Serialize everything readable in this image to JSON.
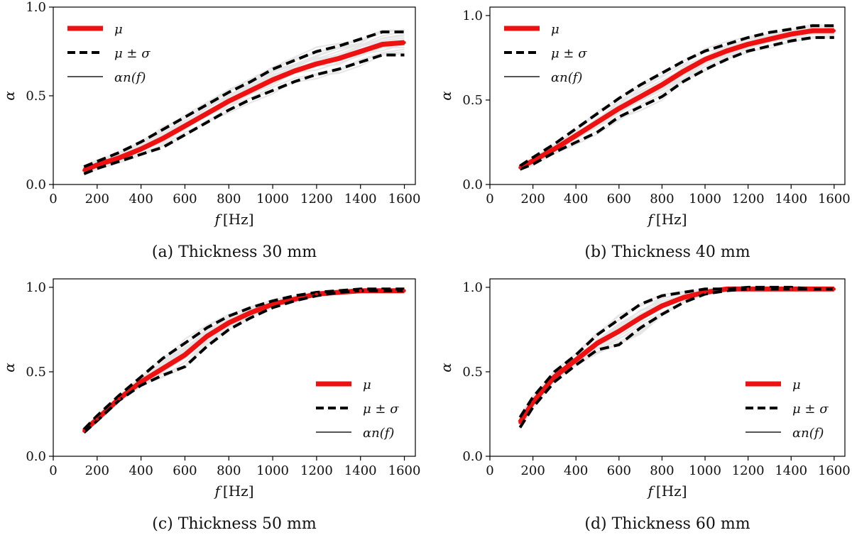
{
  "chart_data": [
    {
      "type": "line",
      "caption": "(a) Thickness 30 mm",
      "xlabel_var": "f",
      "xlabel_unit": "[Hz]",
      "ylabel": "α",
      "xlim": [
        0,
        1650
      ],
      "ylim": [
        0.0,
        1.0
      ],
      "xticks": [
        0,
        200,
        400,
        600,
        800,
        1000,
        1200,
        1400,
        1600
      ],
      "yticks": [
        0.0,
        0.5,
        1.0
      ],
      "ytick_labels": [
        "0.0",
        "0.5",
        "1.0"
      ],
      "legend_position": "top-left",
      "legend": {
        "mean": "μ",
        "band": "μ ± σ",
        "samples": "αn(f)"
      },
      "x": [
        140,
        200,
        300,
        400,
        500,
        600,
        700,
        800,
        900,
        1000,
        1100,
        1200,
        1300,
        1400,
        1500,
        1600
      ],
      "series": [
        {
          "name": "μ",
          "values": [
            0.08,
            0.11,
            0.15,
            0.2,
            0.26,
            0.33,
            0.4,
            0.47,
            0.53,
            0.59,
            0.64,
            0.68,
            0.71,
            0.75,
            0.79,
            0.8
          ]
        },
        {
          "name": "μ + σ",
          "values": [
            0.1,
            0.13,
            0.18,
            0.24,
            0.31,
            0.38,
            0.45,
            0.52,
            0.58,
            0.65,
            0.7,
            0.75,
            0.78,
            0.82,
            0.86,
            0.86
          ]
        },
        {
          "name": "μ - σ",
          "values": [
            0.06,
            0.09,
            0.13,
            0.17,
            0.21,
            0.28,
            0.35,
            0.42,
            0.48,
            0.53,
            0.58,
            0.62,
            0.65,
            0.69,
            0.73,
            0.73
          ]
        }
      ]
    },
    {
      "type": "line",
      "caption": "(b) Thickness 40 mm",
      "xlabel_var": "f",
      "xlabel_unit": "[Hz]",
      "ylabel": "α",
      "xlim": [
        0,
        1650
      ],
      "ylim": [
        0.0,
        1.05
      ],
      "xticks": [
        0,
        200,
        400,
        600,
        800,
        1000,
        1200,
        1400,
        1600
      ],
      "yticks": [
        0.0,
        0.5,
        1.0
      ],
      "ytick_labels": [
        "0.0",
        "0.5",
        "1.0"
      ],
      "legend_position": "top-left",
      "legend": {
        "mean": "μ",
        "band": "μ ± σ",
        "samples": "αn(f)"
      },
      "x": [
        140,
        200,
        300,
        400,
        500,
        600,
        700,
        800,
        900,
        1000,
        1100,
        1200,
        1300,
        1400,
        1500,
        1600
      ],
      "series": [
        {
          "name": "μ",
          "values": [
            0.1,
            0.14,
            0.21,
            0.29,
            0.37,
            0.45,
            0.52,
            0.59,
            0.67,
            0.74,
            0.79,
            0.83,
            0.86,
            0.89,
            0.91,
            0.91
          ]
        },
        {
          "name": "μ + σ",
          "values": [
            0.11,
            0.16,
            0.24,
            0.33,
            0.42,
            0.51,
            0.59,
            0.66,
            0.73,
            0.79,
            0.83,
            0.87,
            0.9,
            0.92,
            0.94,
            0.94
          ]
        },
        {
          "name": "μ - σ",
          "values": [
            0.09,
            0.12,
            0.19,
            0.25,
            0.31,
            0.4,
            0.46,
            0.52,
            0.61,
            0.68,
            0.74,
            0.79,
            0.82,
            0.85,
            0.87,
            0.87
          ]
        }
      ]
    },
    {
      "type": "line",
      "caption": "(c) Thickness 50 mm",
      "xlabel_var": "f",
      "xlabel_unit": "[Hz]",
      "ylabel": "α",
      "xlim": [
        0,
        1650
      ],
      "ylim": [
        0.0,
        1.05
      ],
      "xticks": [
        0,
        200,
        400,
        600,
        800,
        1000,
        1200,
        1400,
        1600
      ],
      "yticks": [
        0.0,
        0.5,
        1.0
      ],
      "ytick_labels": [
        "0.0",
        "0.5",
        "1.0"
      ],
      "legend_position": "center-right",
      "legend": {
        "mean": "μ",
        "band": "μ ± σ",
        "samples": "αn(f)"
      },
      "x": [
        140,
        200,
        300,
        400,
        500,
        600,
        700,
        800,
        900,
        1000,
        1100,
        1200,
        1300,
        1400,
        1500,
        1600
      ],
      "series": [
        {
          "name": "μ",
          "values": [
            0.15,
            0.22,
            0.34,
            0.44,
            0.52,
            0.6,
            0.71,
            0.79,
            0.85,
            0.9,
            0.93,
            0.96,
            0.97,
            0.98,
            0.98,
            0.98
          ]
        },
        {
          "name": "μ + σ",
          "values": [
            0.16,
            0.24,
            0.36,
            0.47,
            0.58,
            0.67,
            0.76,
            0.83,
            0.88,
            0.92,
            0.95,
            0.97,
            0.98,
            0.99,
            0.99,
            0.99
          ]
        },
        {
          "name": "μ - σ",
          "values": [
            0.14,
            0.21,
            0.33,
            0.42,
            0.48,
            0.53,
            0.65,
            0.75,
            0.82,
            0.88,
            0.92,
            0.95,
            0.97,
            0.98,
            0.98,
            0.98
          ]
        }
      ]
    },
    {
      "type": "line",
      "caption": "(d) Thickness 60 mm",
      "xlabel_var": "f",
      "xlabel_unit": "[Hz]",
      "ylabel": "α",
      "xlim": [
        0,
        1650
      ],
      "ylim": [
        0.0,
        1.05
      ],
      "xticks": [
        0,
        200,
        400,
        600,
        800,
        1000,
        1200,
        1400,
        1600
      ],
      "yticks": [
        0.0,
        0.5,
        1.0
      ],
      "ytick_labels": [
        "0.0",
        "0.5",
        "1.0"
      ],
      "legend_position": "center-right",
      "legend": {
        "mean": "μ",
        "band": "μ ± σ",
        "samples": "αn(f)"
      },
      "x": [
        140,
        200,
        300,
        400,
        500,
        600,
        700,
        800,
        900,
        1000,
        1100,
        1200,
        1300,
        1400,
        1500,
        1600
      ],
      "series": [
        {
          "name": "μ",
          "values": [
            0.2,
            0.32,
            0.47,
            0.57,
            0.67,
            0.74,
            0.82,
            0.89,
            0.94,
            0.97,
            0.99,
            0.99,
            0.99,
            0.99,
            0.99,
            0.99
          ]
        },
        {
          "name": "μ + σ",
          "values": [
            0.23,
            0.35,
            0.5,
            0.6,
            0.72,
            0.81,
            0.9,
            0.95,
            0.97,
            0.99,
            0.99,
            1.0,
            1.0,
            1.0,
            0.99,
            0.99
          ]
        },
        {
          "name": "μ - σ",
          "values": [
            0.17,
            0.29,
            0.44,
            0.54,
            0.63,
            0.66,
            0.76,
            0.84,
            0.91,
            0.96,
            0.98,
            0.99,
            0.99,
            0.99,
            0.99,
            0.99
          ]
        }
      ]
    }
  ],
  "colors": {
    "mean": "#ee1111",
    "band": "#000000",
    "samples": "#b9b9b9",
    "legend_samples": "#555555",
    "axes": "#000000"
  }
}
